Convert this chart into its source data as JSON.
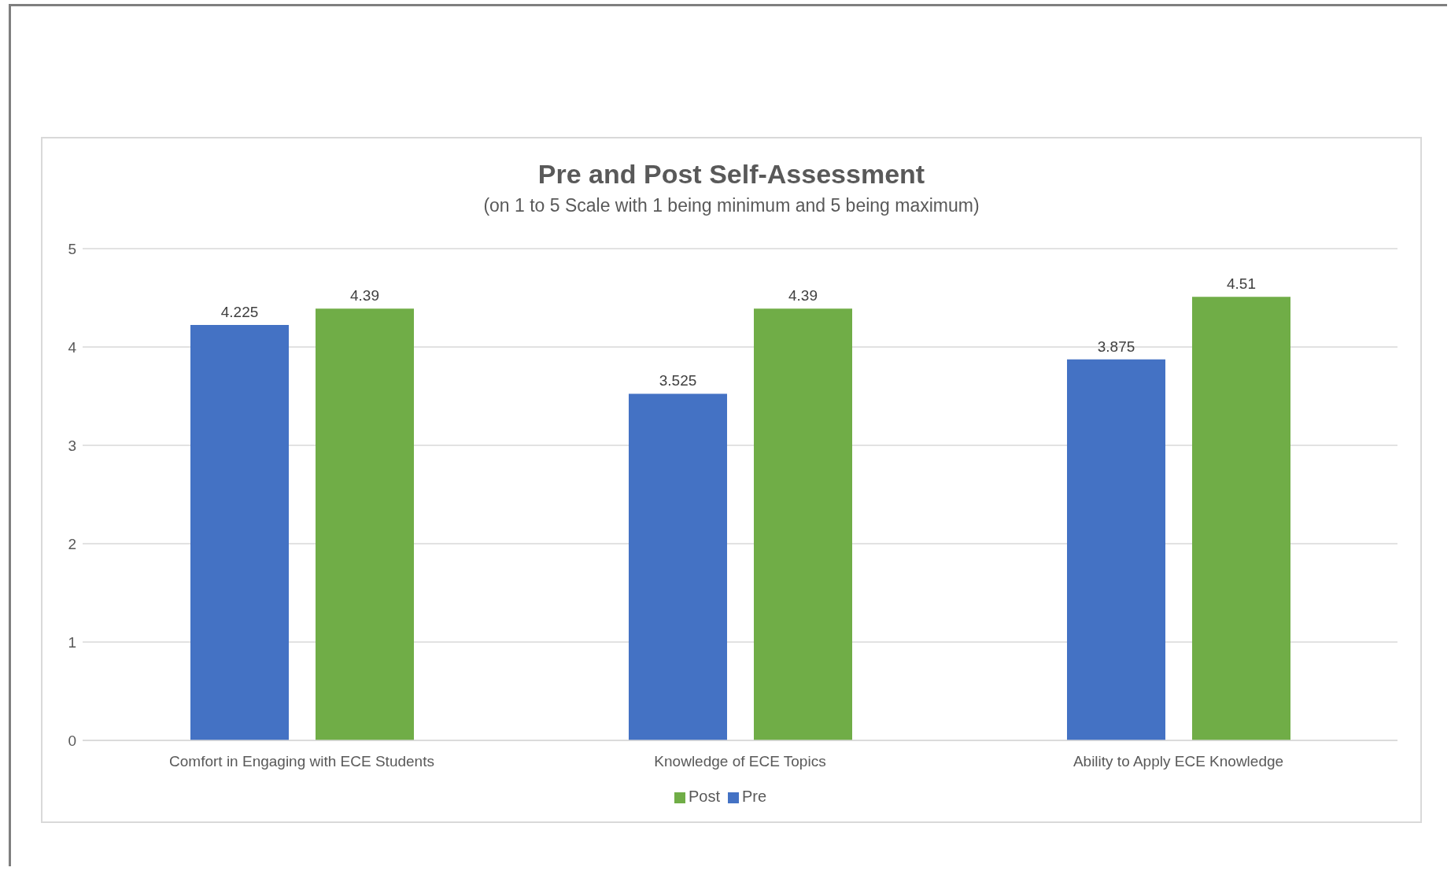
{
  "chart_data": {
    "type": "bar",
    "title": "Pre and Post Self-Assessment",
    "subtitle": "(on 1 to 5 Scale with 1 being minimum and 5 being maximum)",
    "categories": [
      "Comfort in Engaging with ECE Students",
      "Knowledge of ECE Topics",
      "Ability to Apply ECE Knowledge"
    ],
    "series": [
      {
        "name": "Pre",
        "color": "#4472c4",
        "values": [
          4.225,
          3.525,
          3.875
        ]
      },
      {
        "name": "Post",
        "color": "#70ad47",
        "values": [
          4.39,
          4.39,
          4.51
        ]
      }
    ],
    "ylim": [
      0,
      5
    ],
    "yticks": [
      0,
      1,
      2,
      3,
      4,
      5
    ],
    "grid": "y",
    "legend": "bottom",
    "data_labels": true
  }
}
